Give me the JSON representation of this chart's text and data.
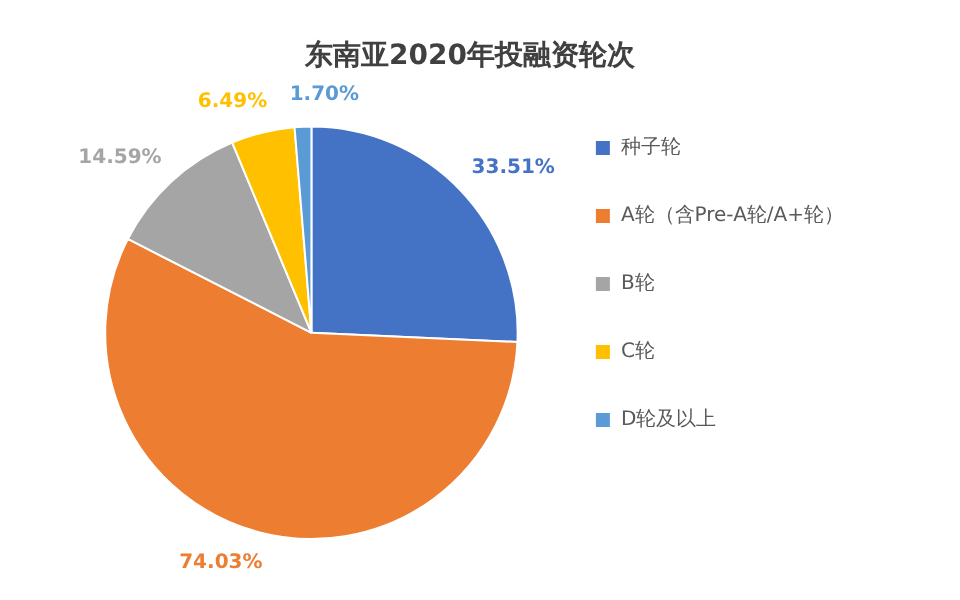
{
  "chart_data": {
    "type": "pie",
    "title": "东南亚2020年投融资轮次",
    "categories": [
      "种子轮",
      "A轮（含Pre-A轮/A+轮）",
      "B轮",
      "C轮",
      "D轮及以上"
    ],
    "values": [
      33.51,
      74.03,
      14.59,
      6.49,
      1.7
    ],
    "value_labels": [
      "33.51%",
      "74.03%",
      "14.59%",
      "6.49%",
      "1.70%"
    ],
    "colors": [
      "#4472c4",
      "#ed7d31",
      "#a5a5a5",
      "#ffc000",
      "#5b9bd5"
    ],
    "legend": "right"
  }
}
